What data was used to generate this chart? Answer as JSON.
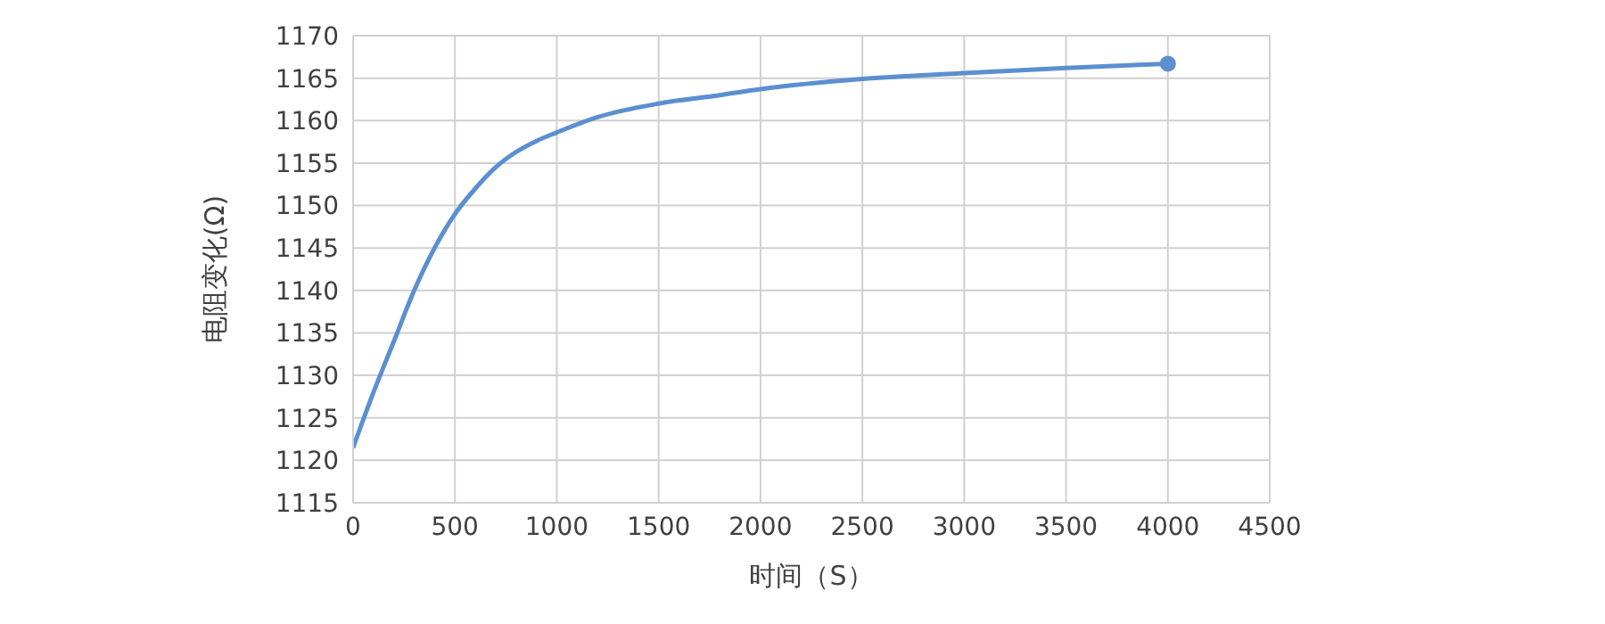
{
  "chart_data": {
    "type": "line",
    "xlabel": "时间（S）",
    "ylabel": "电阻变化(Ω)",
    "xlim": [
      0,
      4500
    ],
    "xticks": [
      0,
      500,
      1000,
      1500,
      2000,
      2500,
      3000,
      3500,
      4000,
      4500
    ],
    "ylim": [
      1115,
      1170
    ],
    "yticks": [
      1115,
      1120,
      1125,
      1130,
      1135,
      1140,
      1145,
      1150,
      1155,
      1160,
      1165,
      1170
    ],
    "grid": true,
    "marker": "none",
    "line_style": "solid",
    "series": [
      {
        "color": "#5b8fd0",
        "x": [
          0,
          100,
          200,
          300,
          400,
          500,
          600,
          700,
          800,
          900,
          1000,
          1200,
          1500,
          1800,
          2000,
          2500,
          3000,
          3500,
          4000
        ],
        "values": [
          1121.5,
          1128,
          1134,
          1140,
          1145,
          1149,
          1152,
          1154.5,
          1156.3,
          1157.6,
          1158.6,
          1160.4,
          1162,
          1163,
          1163.7,
          1164.9,
          1165.6,
          1166.2,
          1166.7
        ]
      },
      {
        "type": "scatter",
        "marker": "circle",
        "color": "#5b8fd0",
        "x": [
          4000
        ],
        "values": [
          1166.7
        ]
      }
    ]
  }
}
